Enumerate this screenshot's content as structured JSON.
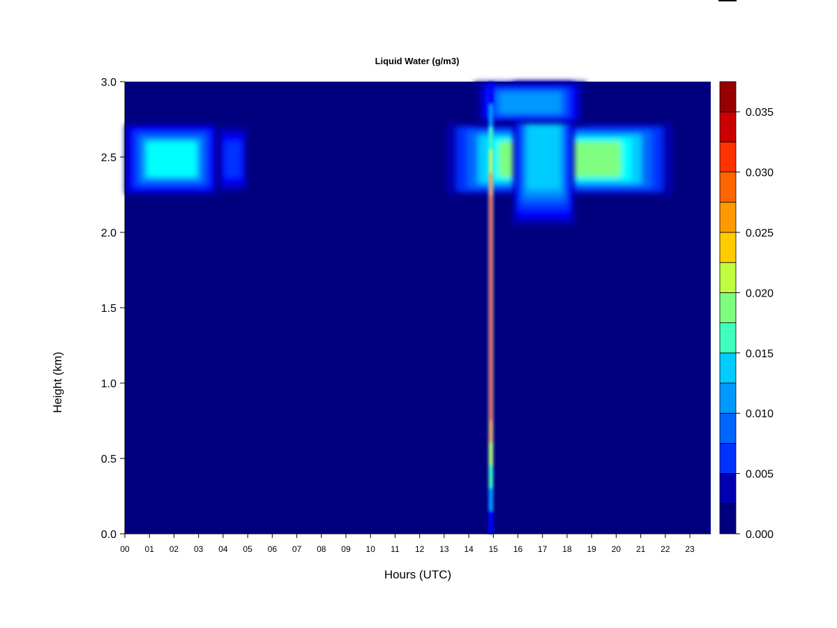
{
  "chart_data": {
    "type": "heatmap",
    "title": "Liquid Water (g/m3)",
    "xlabel": "Hours (UTC)",
    "ylabel": "Height (km)",
    "xlim": [
      0,
      23.85
    ],
    "ylim": [
      0,
      3.0
    ],
    "x_ticks": [
      "00",
      "01",
      "02",
      "03",
      "04",
      "05",
      "06",
      "07",
      "08",
      "09",
      "10",
      "11",
      "12",
      "13",
      "14",
      "15",
      "16",
      "17",
      "18",
      "19",
      "20",
      "21",
      "22",
      "23"
    ],
    "y_ticks": [
      "0.0",
      "0.5",
      "1.0",
      "1.5",
      "2.0",
      "2.5",
      "3.0"
    ],
    "colorbar": {
      "levels": [
        0.0,
        0.0025,
        0.005,
        0.0075,
        0.01,
        0.0125,
        0.015,
        0.0175,
        0.02,
        0.0225,
        0.025,
        0.0275,
        0.03,
        0.0325,
        0.035,
        0.0375
      ],
      "tick_labels": [
        "0.000",
        "0.005",
        "0.010",
        "0.015",
        "0.020",
        "0.025",
        "0.030",
        "0.035"
      ],
      "colors": [
        "#00007f",
        "#0000b2",
        "#0000ff",
        "#0033ff",
        "#0066ff",
        "#0099ff",
        "#00ccff",
        "#00ffff",
        "#3fffbf",
        "#7fff7f",
        "#bfff3f",
        "#ffff00",
        "#ffcc00",
        "#ff9900",
        "#ff6600",
        "#ff3300",
        "#ff0000",
        "#cc0000",
        "#990000"
      ]
    },
    "features": [
      {
        "name": "cloud layer A",
        "x": [
          0.0,
          3.8
        ],
        "y": [
          2.25,
          2.72
        ],
        "peak_value": 0.014
      },
      {
        "name": "cloud layer A fringe",
        "x": [
          3.8,
          5.0
        ],
        "y": [
          2.25,
          2.72
        ],
        "peak_value": 0.006
      },
      {
        "name": "cloud layer B",
        "x": [
          13.1,
          22.3
        ],
        "y": [
          2.25,
          2.72
        ],
        "peak_value": 0.018
      },
      {
        "name": "cloud layer B deep",
        "x": [
          15.8,
          18.3
        ],
        "y": [
          2.05,
          3.0
        ],
        "peak_value": 0.012
      },
      {
        "name": "upper cloud",
        "x": [
          14.2,
          18.8
        ],
        "y": [
          2.72,
          3.0
        ],
        "peak_value": 0.01
      },
      {
        "name": "convective column",
        "x": [
          14.8,
          15.0
        ],
        "y": [
          0.0,
          3.0
        ],
        "peak_value": 0.032
      }
    ]
  }
}
